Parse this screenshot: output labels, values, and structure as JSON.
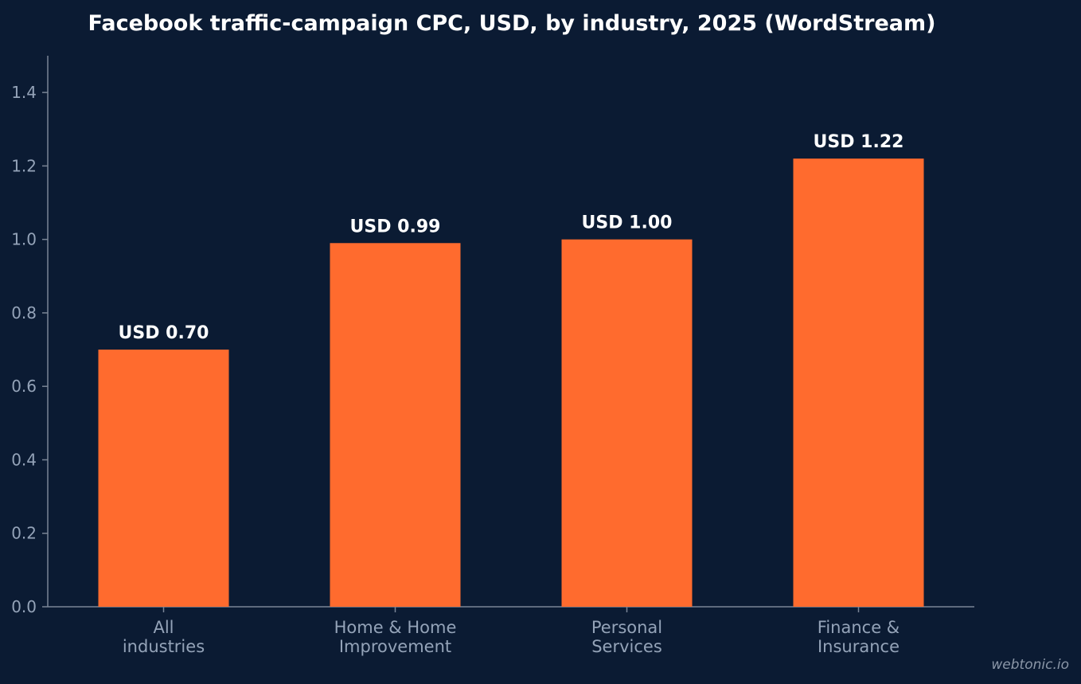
{
  "colors": {
    "background": "#0b1b33",
    "bar": "#ff6b2e",
    "axis": "#7a8596",
    "tick_text": "#94a3b8",
    "label_text": "#ffffff"
  },
  "watermark": "webtonic.io",
  "chart_data": {
    "type": "bar",
    "title": "Facebook traffic-campaign CPC, USD, by industry, 2025 (WordStream)",
    "xlabel": "",
    "ylabel": "",
    "categories": [
      [
        "All",
        "industries"
      ],
      [
        "Home & Home",
        "Improvement"
      ],
      [
        "Personal",
        "Services"
      ],
      [
        "Finance &",
        "Insurance"
      ]
    ],
    "values": [
      0.7,
      0.99,
      1.0,
      1.22
    ],
    "data_labels": [
      "USD 0.70",
      "USD 0.99",
      "USD 1.00",
      "USD 1.22"
    ],
    "ylim": [
      0,
      1.5
    ],
    "yticks": [
      0.0,
      0.2,
      0.4,
      0.6,
      0.8,
      1.0,
      1.2,
      1.4
    ],
    "ytick_labels": [
      "0.0",
      "0.2",
      "0.4",
      "0.6",
      "0.8",
      "1.0",
      "1.2",
      "1.4"
    ],
    "grid": false,
    "legend": "none"
  }
}
